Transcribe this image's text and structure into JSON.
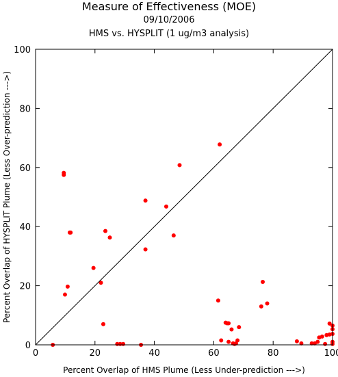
{
  "chart_data": {
    "type": "scatter",
    "title": "Measure of Effectiveness (MOE)",
    "subtitle": "09/10/2006",
    "subtitle2": "HMS vs. HYSPLIT  (1 ug/m3 analysis)",
    "xlabel": "Percent Overlap of HMS Plume (Less Under-prediction --->)",
    "ylabel": "Percent Overlap of HYSPLIT Plume (Less Over-prediction --->)",
    "xlim": [
      0,
      100
    ],
    "ylim": [
      0,
      100
    ],
    "xticks": [
      "0",
      "20",
      "40",
      "60",
      "80",
      "100"
    ],
    "yticks": [
      "0",
      "20",
      "40",
      "60",
      "80",
      "100"
    ],
    "diagonal": true,
    "grid": false,
    "point_color": "#ff0000",
    "points": [
      [
        5.8,
        0
      ],
      [
        9.5,
        58.2
      ],
      [
        9.5,
        57.5
      ],
      [
        9.9,
        17
      ],
      [
        10.8,
        19.7
      ],
      [
        11.5,
        38
      ],
      [
        11.8,
        38
      ],
      [
        19.5,
        26
      ],
      [
        22,
        21
      ],
      [
        22.8,
        7
      ],
      [
        23.5,
        38.5
      ],
      [
        25,
        36.3
      ],
      [
        27.5,
        0.3
      ],
      [
        28.5,
        0.3
      ],
      [
        29.5,
        0.3
      ],
      [
        35.5,
        0
      ],
      [
        37,
        48.8
      ],
      [
        37,
        32.3
      ],
      [
        44,
        46.8
      ],
      [
        46.5,
        37
      ],
      [
        48.5,
        60.8
      ],
      [
        61.5,
        15
      ],
      [
        62,
        67.8
      ],
      [
        62.5,
        1.5
      ],
      [
        64,
        7.5
      ],
      [
        64.5,
        7.3
      ],
      [
        65,
        7.3
      ],
      [
        65,
        1
      ],
      [
        66,
        5.2
      ],
      [
        66.5,
        0.5
      ],
      [
        67,
        0.3
      ],
      [
        67.5,
        0.5
      ],
      [
        68,
        1.5
      ],
      [
        68.5,
        6
      ],
      [
        76,
        13
      ],
      [
        76.5,
        21.3
      ],
      [
        78,
        14
      ],
      [
        88,
        1.2
      ],
      [
        89.5,
        0.5
      ],
      [
        93,
        0.5
      ],
      [
        94,
        0.5
      ],
      [
        95,
        1
      ],
      [
        95.5,
        2.5
      ],
      [
        96.5,
        2.8
      ],
      [
        97.5,
        0.3
      ],
      [
        98,
        3.3
      ],
      [
        99,
        3.5
      ],
      [
        99,
        7.2
      ],
      [
        100,
        0.3
      ],
      [
        100,
        1
      ],
      [
        100,
        3.7
      ],
      [
        100,
        5.3
      ],
      [
        100,
        6.5
      ]
    ]
  }
}
